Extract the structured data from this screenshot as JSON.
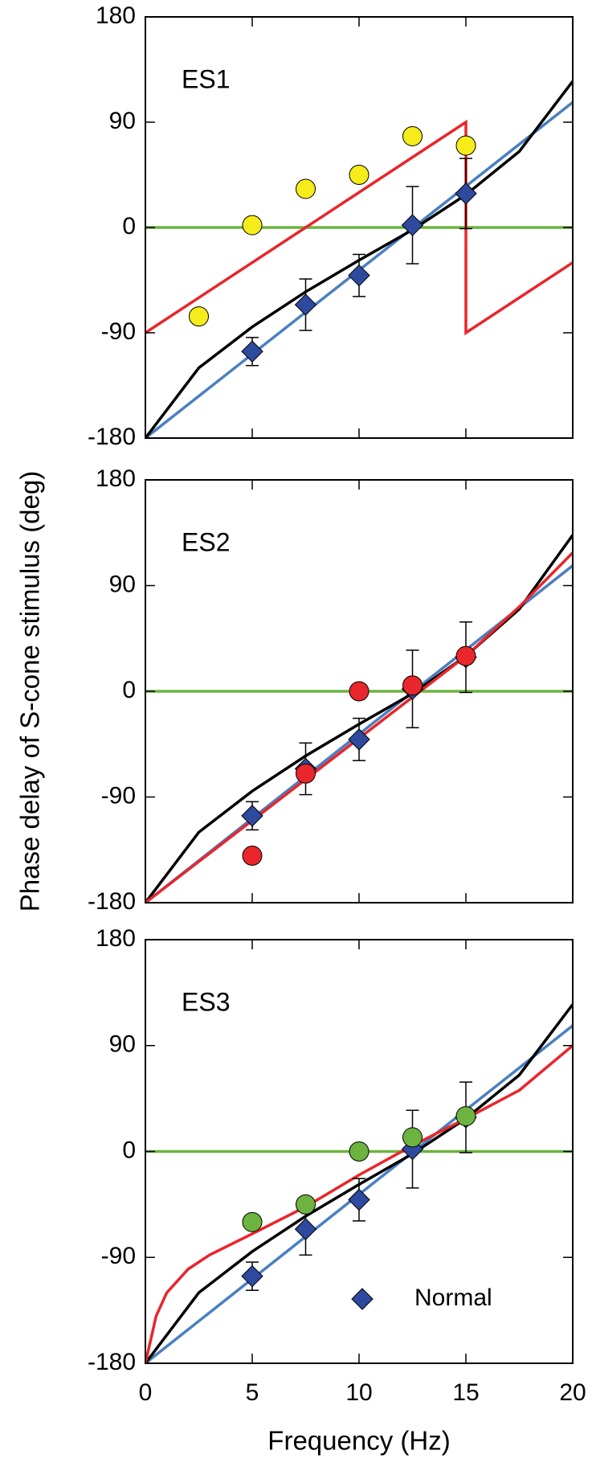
{
  "y_label": "Phase delay of S-cone stimulus (deg)",
  "x_label": "Frequency (Hz)",
  "chart_data": [
    {
      "type": "line",
      "label": "ES1",
      "xlim": [
        0,
        20
      ],
      "xticks": [
        0,
        5,
        10,
        15,
        20
      ],
      "show_xtick_labels": false,
      "ylim": [
        -180,
        180
      ],
      "yticks": [
        -180,
        -90,
        0,
        90,
        180
      ],
      "series": [
        {
          "color": "#6cb33f",
          "x": [
            0,
            20
          ],
          "values": [
            0,
            0
          ]
        },
        {
          "color": "#4a7fc1",
          "x": [
            0,
            20
          ],
          "values": [
            -180,
            107
          ]
        },
        {
          "color": "#000000",
          "x": [
            0,
            2.5,
            5,
            7.5,
            10,
            12.5,
            15,
            17.5,
            20
          ],
          "values": [
            -180,
            -120,
            -85,
            -55,
            -28,
            -2,
            28,
            65,
            125
          ]
        },
        {
          "color": "#e8262b",
          "x": [
            0,
            15,
            15,
            20
          ],
          "values": [
            -90,
            90,
            -90,
            -30
          ]
        },
        {
          "color": "#2e4a9e",
          "marker": "diamond",
          "x": [
            5,
            7.5,
            10,
            12.5,
            15
          ],
          "values": [
            -106,
            -66,
            -41,
            2,
            29
          ],
          "errors": [
            12,
            22,
            18,
            33,
            30
          ]
        },
        {
          "color": "#f6ec1b",
          "marker": "circle",
          "x": [
            2.5,
            5,
            7.5,
            10,
            12.5,
            15
          ],
          "values": [
            -76,
            2,
            33,
            45,
            78,
            70
          ]
        }
      ]
    },
    {
      "type": "line",
      "label": "ES2",
      "xlim": [
        0,
        20
      ],
      "xticks": [
        0,
        5,
        10,
        15,
        20
      ],
      "show_xtick_labels": false,
      "ylim": [
        -180,
        180
      ],
      "yticks": [
        -180,
        -90,
        0,
        90,
        180
      ],
      "series": [
        {
          "color": "#6cb33f",
          "x": [
            0,
            20
          ],
          "values": [
            0,
            0
          ]
        },
        {
          "color": "#4a7fc1",
          "x": [
            0,
            20
          ],
          "values": [
            -180,
            107
          ]
        },
        {
          "color": "#000000",
          "x": [
            0,
            2.5,
            5,
            7.5,
            10,
            12.5,
            15,
            17.5,
            20
          ],
          "values": [
            -180,
            -120,
            -85,
            -55,
            -28,
            -2,
            30,
            70,
            133
          ]
        },
        {
          "color": "#e8262b",
          "x": [
            0,
            5,
            7.5,
            10,
            12.5,
            15,
            17.5,
            20
          ],
          "values": [
            -180,
            -110,
            -75,
            -40,
            -5,
            30,
            72,
            118
          ]
        },
        {
          "color": "#2e4a9e",
          "marker": "diamond",
          "x": [
            5,
            7.5,
            10,
            12.5,
            15
          ],
          "values": [
            -106,
            -66,
            -41,
            2,
            29
          ],
          "errors": [
            12,
            22,
            18,
            33,
            30
          ]
        },
        {
          "color": "#e8262b",
          "marker": "circle",
          "x": [
            5,
            7.5,
            10,
            12.5,
            15
          ],
          "values": [
            -140,
            -70,
            0,
            5,
            30
          ]
        }
      ]
    },
    {
      "type": "line",
      "label": "ES3",
      "xlim": [
        0,
        20
      ],
      "xticks": [
        0,
        5,
        10,
        15,
        20
      ],
      "show_xtick_labels": true,
      "ylim": [
        -180,
        180
      ],
      "yticks": [
        -180,
        -90,
        0,
        90,
        180
      ],
      "legend": "lower right",
      "series": [
        {
          "color": "#6cb33f",
          "x": [
            0,
            20
          ],
          "values": [
            0,
            0
          ]
        },
        {
          "color": "#4a7fc1",
          "x": [
            0,
            20
          ],
          "values": [
            -180,
            107
          ]
        },
        {
          "color": "#000000",
          "x": [
            0,
            2.5,
            5,
            7.5,
            10,
            12.5,
            15,
            17.5,
            20
          ],
          "values": [
            -180,
            -120,
            -85,
            -55,
            -28,
            -2,
            28,
            65,
            125
          ]
        },
        {
          "color": "#e8262b",
          "x": [
            0,
            0.5,
            1,
            2,
            3,
            5,
            7.5,
            10,
            12.5,
            15,
            17.5,
            20
          ],
          "values": [
            -180,
            -140,
            -120,
            -100,
            -88,
            -70,
            -47,
            -20,
            5,
            28,
            52,
            90
          ]
        },
        {
          "name": "Normal",
          "color": "#2e4a9e",
          "marker": "diamond",
          "x": [
            5,
            7.5,
            10,
            12.5,
            15
          ],
          "values": [
            -106,
            -66,
            -41,
            2,
            29
          ],
          "errors": [
            12,
            22,
            18,
            33,
            30
          ]
        },
        {
          "color": "#6cb33f",
          "marker": "circle",
          "x": [
            5,
            7.5,
            10,
            12.5,
            15
          ],
          "values": [
            -60,
            -45,
            0,
            12,
            30
          ]
        }
      ]
    }
  ]
}
